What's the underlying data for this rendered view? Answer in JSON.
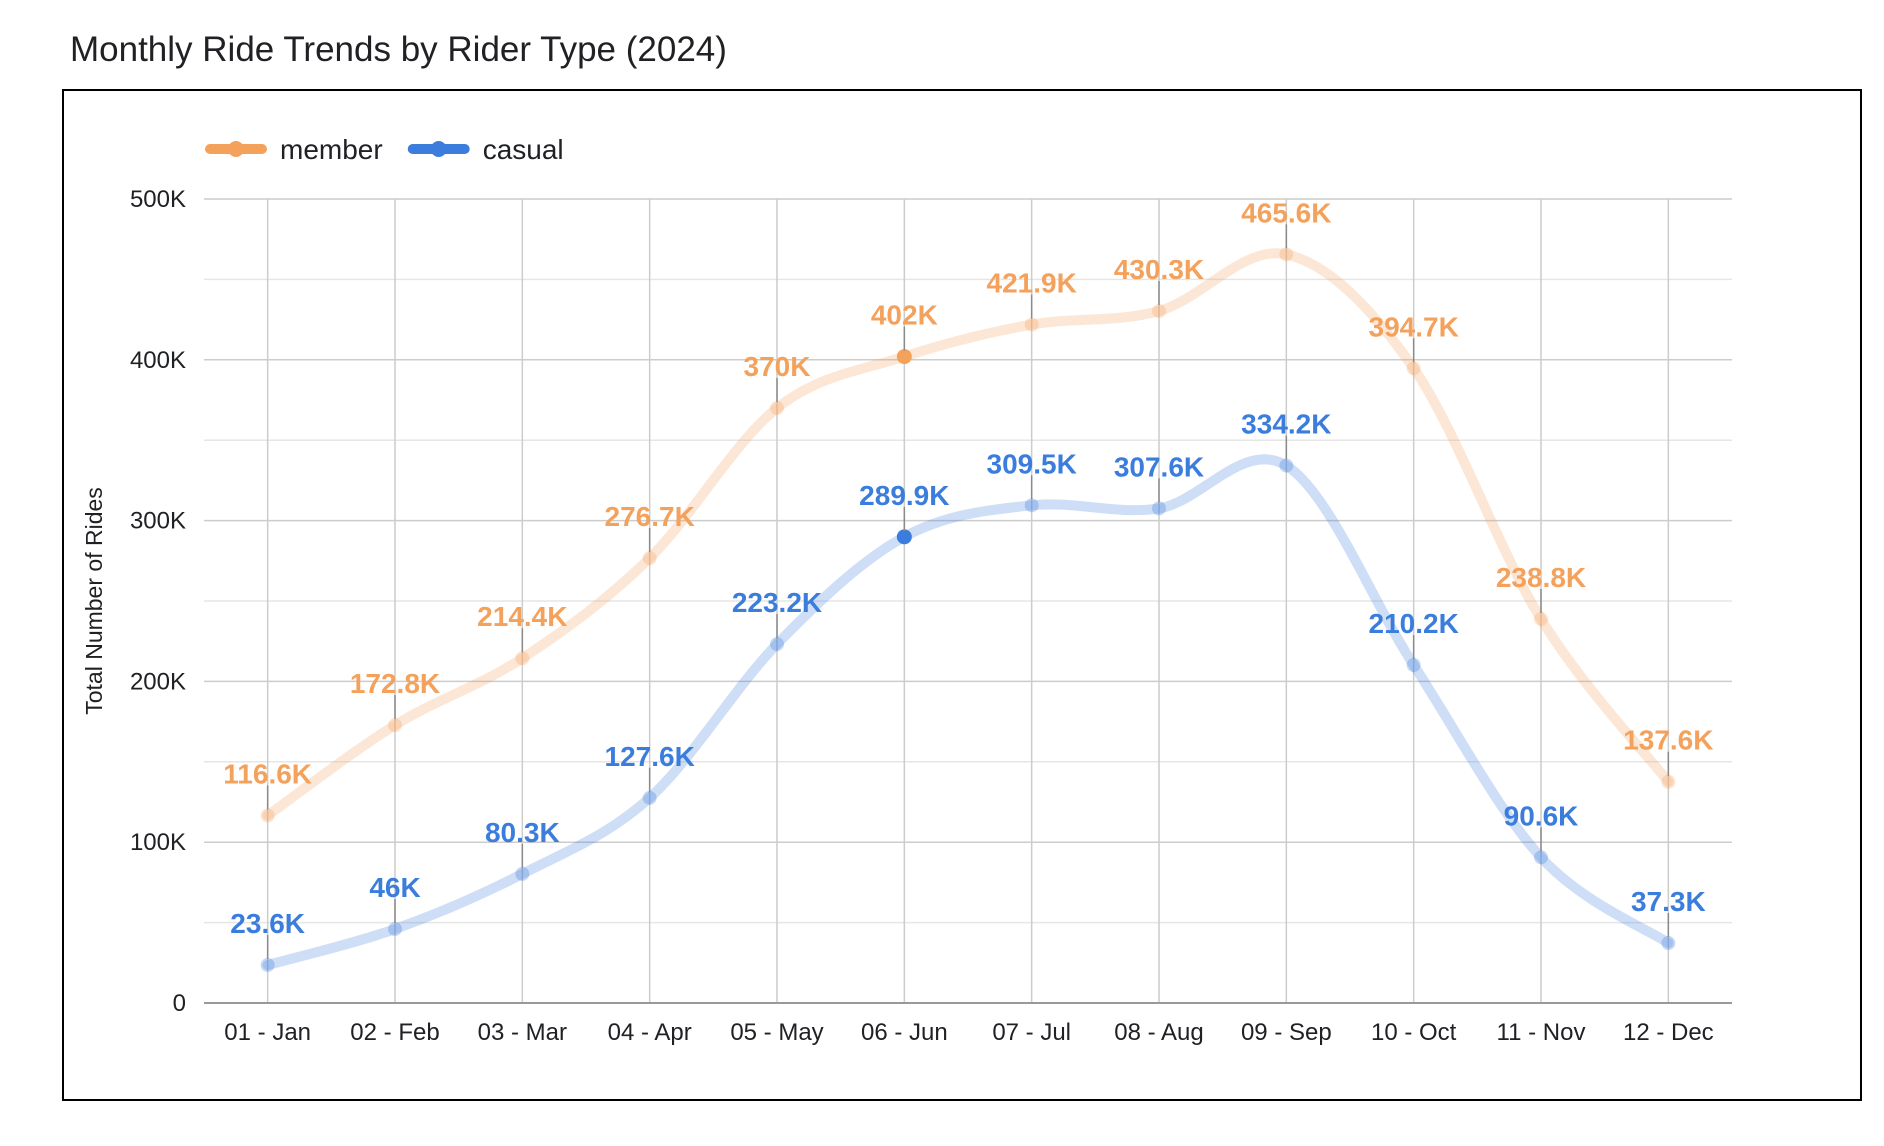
{
  "chart_data": {
    "type": "line",
    "title": "Monthly Ride Trends by Rider Type (2024)",
    "xlabel": "",
    "ylabel": "Total Number of Rides",
    "categories": [
      "01 - Jan",
      "02 - Feb",
      "03 - Mar",
      "04 - Apr",
      "05 - May",
      "06 - Jun",
      "07 - Jul",
      "08 - Aug",
      "09 - Sep",
      "10 - Oct",
      "11 - Nov",
      "12 - Dec"
    ],
    "ylim": [
      0,
      500000
    ],
    "yticks": [
      {
        "value": 0,
        "label": "0"
      },
      {
        "value": 100000,
        "label": "100K"
      },
      {
        "value": 200000,
        "label": "200K"
      },
      {
        "value": 300000,
        "label": "300K"
      },
      {
        "value": 400000,
        "label": "400K"
      },
      {
        "value": 500000,
        "label": "500K"
      }
    ],
    "grid": true,
    "legend_position": "top-left",
    "series": [
      {
        "name": "member",
        "color": "#f4a15c",
        "values": [
          116600,
          172800,
          214400,
          276700,
          370000,
          402000,
          421900,
          430300,
          465600,
          394700,
          238800,
          137600
        ],
        "labels": [
          "116.6K",
          "172.8K",
          "214.4K",
          "276.7K",
          "370K",
          "402K",
          "421.9K",
          "430.3K",
          "465.6K",
          "394.7K",
          "238.8K",
          "137.6K"
        ]
      },
      {
        "name": "casual",
        "color": "#3b7ddd",
        "values": [
          23600,
          46000,
          80300,
          127600,
          223200,
          289900,
          309500,
          307600,
          334200,
          210200,
          90600,
          37300
        ],
        "labels": [
          "23.6K",
          "46K",
          "80.3K",
          "127.6K",
          "223.2K",
          "289.9K",
          "309.5K",
          "307.6K",
          "334.2K",
          "210.2K",
          "90.6K",
          "37.3K"
        ]
      }
    ],
    "highlighted_category": "06 - Jun"
  }
}
